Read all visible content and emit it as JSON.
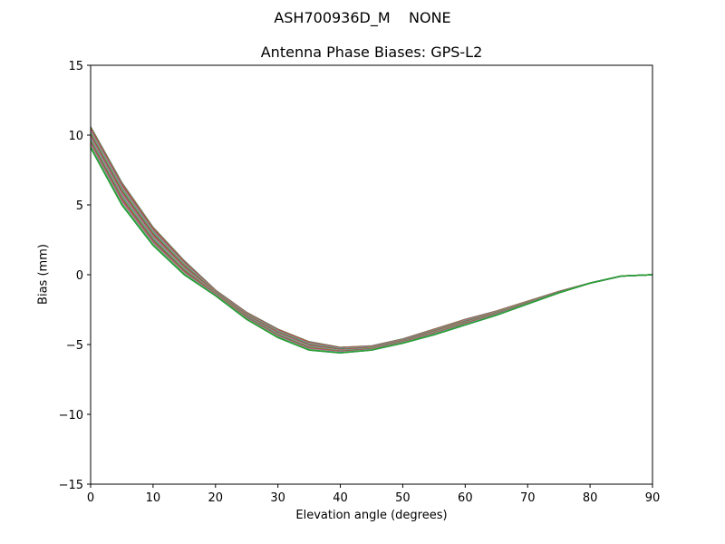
{
  "chart_data": {
    "type": "line",
    "suptitle": "ASH700936D_M    NONE",
    "title": "Antenna Phase Biases: GPS-L2",
    "xlabel": "Elevation angle (degrees)",
    "ylabel": "Bias (mm)",
    "xlim": [
      0,
      90
    ],
    "ylim": [
      -15,
      15
    ],
    "xticks": [
      0,
      10,
      20,
      30,
      40,
      50,
      60,
      70,
      80,
      90
    ],
    "yticks": [
      15,
      10,
      5,
      0,
      -5,
      -10,
      -15
    ],
    "ytick_labels": [
      "15",
      "10",
      "5",
      "0",
      "−5",
      "−10",
      "−15"
    ],
    "grid": false,
    "x": [
      0,
      5,
      10,
      15,
      20,
      25,
      30,
      35,
      40,
      45,
      50,
      55,
      60,
      65,
      70,
      75,
      80,
      85,
      90
    ],
    "series": [
      {
        "name": "azimuth-bundle-upper",
        "color": "#8c564b",
        "values": [
          10.6,
          6.6,
          3.4,
          1.0,
          -1.1,
          -2.7,
          -3.9,
          -4.8,
          -5.2,
          -5.1,
          -4.6,
          -3.9,
          -3.2,
          -2.6,
          -1.9,
          -1.2,
          -0.6,
          -0.1,
          0.0
        ]
      },
      {
        "name": "azimuth-bundle-mid",
        "color": "#ff7f0e",
        "values": [
          10.0,
          5.8,
          2.7,
          0.5,
          -1.3,
          -3.0,
          -4.3,
          -5.1,
          -5.4,
          -5.3,
          -4.8,
          -4.2,
          -3.6,
          -3.0,
          -2.2,
          -1.4,
          -0.7,
          -0.2,
          0.0
        ]
      },
      {
        "name": "azimuth-bundle-cyan",
        "color": "#17becf",
        "values": [
          10.3,
          6.2,
          3.0,
          0.7,
          -1.2,
          -2.9,
          -4.2,
          -5.0,
          -5.3,
          -5.2,
          -4.7,
          -4.1,
          -3.5,
          -2.9,
          -2.1,
          -1.4,
          -0.7,
          -0.2,
          0.0
        ]
      },
      {
        "name": "azimuth-bundle-pink",
        "color": "#e377c2",
        "values": [
          9.4,
          5.4,
          2.4,
          0.2,
          -1.4,
          -3.1,
          -4.4,
          -5.2,
          -5.5,
          -5.4,
          -4.9,
          -4.3,
          -3.7,
          -3.1,
          -2.3,
          -1.5,
          -0.8,
          -0.2,
          0.0
        ]
      },
      {
        "name": "azimuth-bundle-lower",
        "color": "#2ca02c",
        "values": [
          9.1,
          5.0,
          2.1,
          0.0,
          -1.5,
          -3.2,
          -4.5,
          -5.4,
          -5.6,
          -5.4,
          -4.9,
          -4.3,
          -3.6,
          -2.9,
          -2.1,
          -1.3,
          -0.6,
          -0.1,
          0.0
        ]
      }
    ]
  }
}
